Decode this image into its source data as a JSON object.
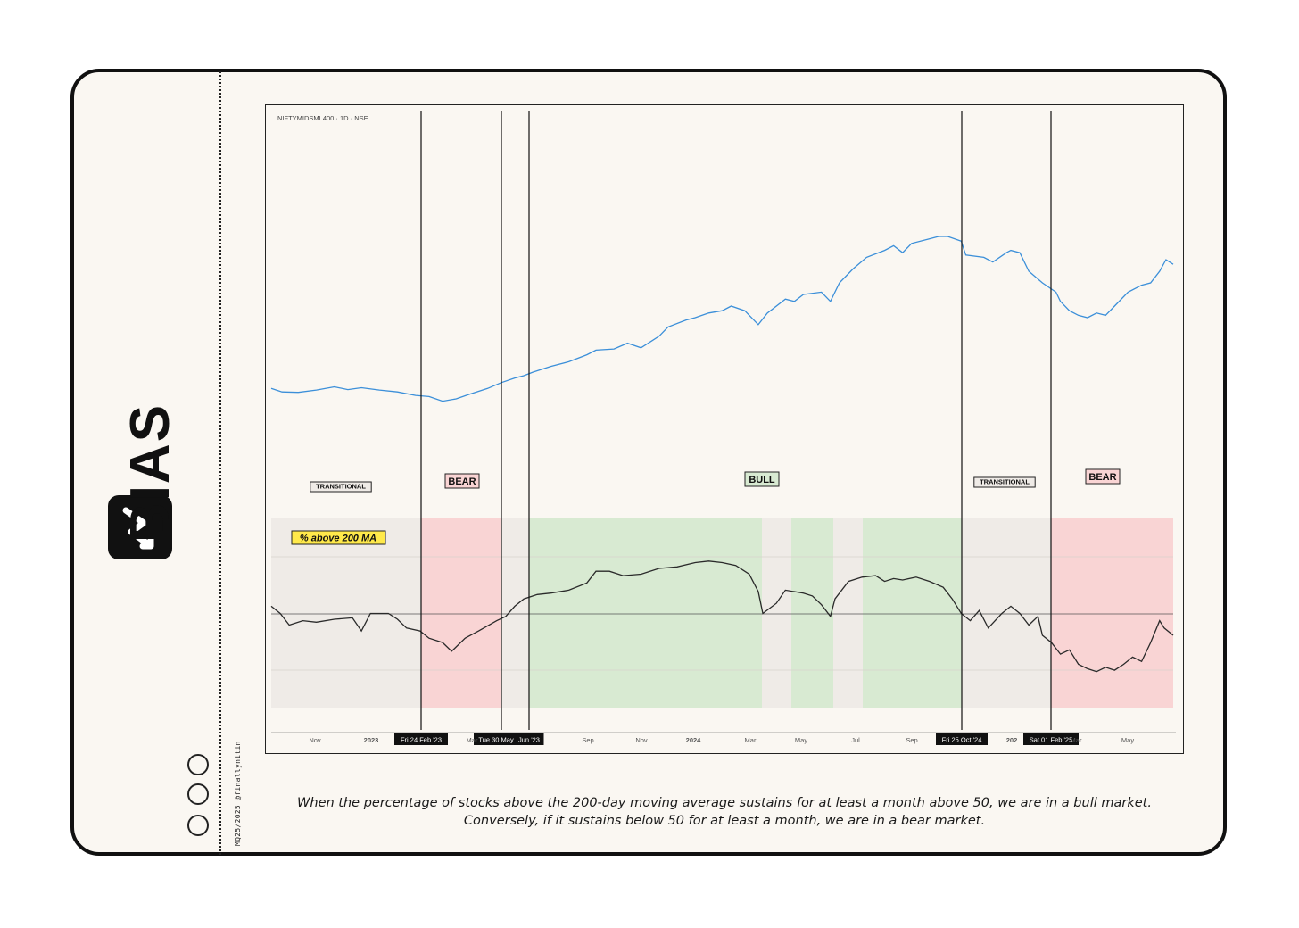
{
  "brand": {
    "name": "BIAS",
    "logo_icon": "trend-arrow-icon"
  },
  "credit": "MQ25/2025 @finallynitin",
  "dots": [
    {
      "color": "#c8625a"
    },
    {
      "color": "#6a8f66"
    },
    {
      "color": "#c8625a"
    }
  ],
  "caption": "When the percentage of stocks above the 200-day moving average sustains for at least a month above 50, we are in a bull market. Conversely, if it sustains below 50 for at least a month, we are in a bear market.",
  "chart_data": {
    "type": "line",
    "symbol_label": "NIFTYMIDSML400 · 1D · NSE",
    "indicator_label": "% above 200 MA",
    "x_ticks": [
      "Nov",
      "2023",
      "Mar",
      "Sep",
      "Nov",
      "2024",
      "Mar",
      "May",
      "Jul",
      "Sep",
      "202",
      "Mar",
      "May"
    ],
    "markers": [
      {
        "label": "Fri 24 Feb '23"
      },
      {
        "label": "Tue 30 May '23"
      },
      {
        "label": "Jun '23"
      },
      {
        "label": "Fri 25 Oct '24"
      },
      {
        "label": "Sat 01 Feb '25"
      }
    ],
    "regimes": [
      {
        "label": "TRANSITIONAL",
        "color": "#efebe7"
      },
      {
        "label": "BEAR",
        "color": "#f9d4d4"
      },
      {
        "label": "BULL",
        "color": "#d8ead2"
      },
      {
        "label": "TRANSITIONAL",
        "color": "#efebe7"
      },
      {
        "label": "BEAR",
        "color": "#f9d4d4"
      }
    ],
    "colors": {
      "price": "#3b8fd9",
      "breadth": "#2a2a2a",
      "bull": "#d8ead2",
      "bear": "#f9d4d4",
      "transitional": "#efebe7",
      "label_highlight": "#ffe94a"
    },
    "price_series": [
      [
        0,
        0.145
      ],
      [
        0.012,
        0.13
      ],
      [
        0.03,
        0.128
      ],
      [
        0.05,
        0.138
      ],
      [
        0.07,
        0.152
      ],
      [
        0.085,
        0.14
      ],
      [
        0.1,
        0.148
      ],
      [
        0.12,
        0.138
      ],
      [
        0.14,
        0.13
      ],
      [
        0.16,
        0.115
      ],
      [
        0.175,
        0.11
      ],
      [
        0.19,
        0.09
      ],
      [
        0.205,
        0.1
      ],
      [
        0.22,
        0.12
      ],
      [
        0.24,
        0.145
      ],
      [
        0.255,
        0.17
      ],
      [
        0.27,
        0.19
      ],
      [
        0.28,
        0.2
      ],
      [
        0.29,
        0.215
      ],
      [
        0.31,
        0.24
      ],
      [
        0.33,
        0.26
      ],
      [
        0.35,
        0.29
      ],
      [
        0.36,
        0.31
      ],
      [
        0.38,
        0.315
      ],
      [
        0.395,
        0.34
      ],
      [
        0.41,
        0.32
      ],
      [
        0.43,
        0.37
      ],
      [
        0.44,
        0.41
      ],
      [
        0.46,
        0.44
      ],
      [
        0.47,
        0.45
      ],
      [
        0.485,
        0.47
      ],
      [
        0.5,
        0.48
      ],
      [
        0.51,
        0.5
      ],
      [
        0.525,
        0.48
      ],
      [
        0.54,
        0.42
      ],
      [
        0.55,
        0.47
      ],
      [
        0.57,
        0.53
      ],
      [
        0.58,
        0.52
      ],
      [
        0.59,
        0.55
      ],
      [
        0.61,
        0.56
      ],
      [
        0.62,
        0.52
      ],
      [
        0.63,
        0.6
      ],
      [
        0.645,
        0.66
      ],
      [
        0.66,
        0.71
      ],
      [
        0.68,
        0.74
      ],
      [
        0.69,
        0.76
      ],
      [
        0.7,
        0.73
      ],
      [
        0.71,
        0.77
      ],
      [
        0.73,
        0.79
      ],
      [
        0.74,
        0.8
      ],
      [
        0.75,
        0.8
      ],
      [
        0.765,
        0.78
      ],
      [
        0.77,
        0.72
      ],
      [
        0.79,
        0.71
      ],
      [
        0.8,
        0.69
      ],
      [
        0.815,
        0.73
      ],
      [
        0.82,
        0.74
      ],
      [
        0.83,
        0.73
      ],
      [
        0.84,
        0.65
      ],
      [
        0.855,
        0.6
      ],
      [
        0.87,
        0.56
      ],
      [
        0.875,
        0.52
      ],
      [
        0.885,
        0.48
      ],
      [
        0.895,
        0.46
      ],
      [
        0.905,
        0.45
      ],
      [
        0.915,
        0.47
      ],
      [
        0.925,
        0.46
      ],
      [
        0.935,
        0.5
      ],
      [
        0.95,
        0.56
      ],
      [
        0.965,
        0.59
      ],
      [
        0.975,
        0.6
      ],
      [
        0.985,
        0.65
      ],
      [
        0.992,
        0.7
      ],
      [
        1.0,
        0.68
      ]
    ],
    "breadth_series": [
      [
        0,
        0.55
      ],
      [
        0.01,
        0.5
      ],
      [
        0.02,
        0.42
      ],
      [
        0.035,
        0.45
      ],
      [
        0.05,
        0.44
      ],
      [
        0.07,
        0.46
      ],
      [
        0.09,
        0.47
      ],
      [
        0.1,
        0.38
      ],
      [
        0.11,
        0.5
      ],
      [
        0.13,
        0.5
      ],
      [
        0.14,
        0.46
      ],
      [
        0.15,
        0.4
      ],
      [
        0.165,
        0.38
      ],
      [
        0.175,
        0.33
      ],
      [
        0.19,
        0.3
      ],
      [
        0.2,
        0.24
      ],
      [
        0.215,
        0.33
      ],
      [
        0.23,
        0.38
      ],
      [
        0.25,
        0.45
      ],
      [
        0.26,
        0.48
      ],
      [
        0.27,
        0.55
      ],
      [
        0.28,
        0.6
      ],
      [
        0.295,
        0.63
      ],
      [
        0.31,
        0.64
      ],
      [
        0.33,
        0.66
      ],
      [
        0.35,
        0.71
      ],
      [
        0.36,
        0.79
      ],
      [
        0.375,
        0.79
      ],
      [
        0.39,
        0.76
      ],
      [
        0.41,
        0.77
      ],
      [
        0.43,
        0.81
      ],
      [
        0.45,
        0.82
      ],
      [
        0.47,
        0.85
      ],
      [
        0.485,
        0.86
      ],
      [
        0.5,
        0.85
      ],
      [
        0.515,
        0.83
      ],
      [
        0.53,
        0.77
      ],
      [
        0.54,
        0.65
      ],
      [
        0.545,
        0.5
      ],
      [
        0.56,
        0.57
      ],
      [
        0.57,
        0.66
      ],
      [
        0.59,
        0.64
      ],
      [
        0.6,
        0.62
      ],
      [
        0.61,
        0.56
      ],
      [
        0.62,
        0.48
      ],
      [
        0.625,
        0.6
      ],
      [
        0.64,
        0.72
      ],
      [
        0.655,
        0.75
      ],
      [
        0.67,
        0.76
      ],
      [
        0.68,
        0.72
      ],
      [
        0.69,
        0.74
      ],
      [
        0.7,
        0.73
      ],
      [
        0.715,
        0.75
      ],
      [
        0.73,
        0.72
      ],
      [
        0.745,
        0.68
      ],
      [
        0.755,
        0.6
      ],
      [
        0.765,
        0.5
      ],
      [
        0.775,
        0.45
      ],
      [
        0.785,
        0.52
      ],
      [
        0.795,
        0.4
      ],
      [
        0.81,
        0.5
      ],
      [
        0.82,
        0.55
      ],
      [
        0.83,
        0.5
      ],
      [
        0.84,
        0.42
      ],
      [
        0.85,
        0.48
      ],
      [
        0.855,
        0.35
      ],
      [
        0.865,
        0.3
      ],
      [
        0.875,
        0.22
      ],
      [
        0.885,
        0.25
      ],
      [
        0.895,
        0.15
      ],
      [
        0.905,
        0.12
      ],
      [
        0.915,
        0.1
      ],
      [
        0.925,
        0.13
      ],
      [
        0.935,
        0.11
      ],
      [
        0.945,
        0.15
      ],
      [
        0.955,
        0.2
      ],
      [
        0.965,
        0.17
      ],
      [
        0.975,
        0.3
      ],
      [
        0.985,
        0.45
      ],
      [
        0.99,
        0.4
      ],
      [
        1.0,
        0.35
      ]
    ]
  }
}
